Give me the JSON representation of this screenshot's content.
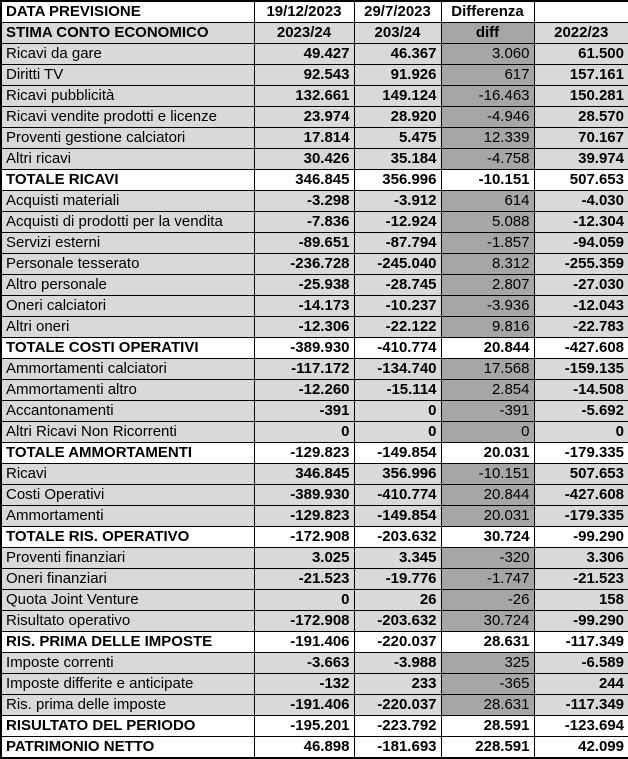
{
  "colors": {
    "row_background": "#d9d9d9",
    "diff_column_background": "#a6a6a6",
    "total_row_background": "#ffffff",
    "border": "#000000",
    "text": "#000000"
  },
  "chart_data": {
    "type": "table",
    "title": "STIMA CONTO ECONOMICO",
    "header_rows": [
      [
        "DATA PREVISIONE",
        "19/12/2023",
        "29/7/2023",
        "Differenza",
        ""
      ],
      [
        "STIMA CONTO ECONOMICO",
        "2023/24",
        "203/24",
        "diff",
        "2022/23"
      ]
    ],
    "rows": [
      {
        "label": "Ricavi da gare",
        "v1": "49.427",
        "v2": "46.367",
        "diff": "3.060",
        "v3": "61.500",
        "kind": "data"
      },
      {
        "label": "Diritti TV",
        "v1": "92.543",
        "v2": "91.926",
        "diff": "617",
        "v3": "157.161",
        "kind": "data"
      },
      {
        "label": "Ricavi pubblicità",
        "v1": "132.661",
        "v2": "149.124",
        "diff": "-16.463",
        "v3": "150.281",
        "kind": "data"
      },
      {
        "label": "Ricavi vendite prodotti e licenze",
        "v1": "23.974",
        "v2": "28.920",
        "diff": "-4.946",
        "v3": "28.570",
        "kind": "data"
      },
      {
        "label": "Proventi gestione calciatori",
        "v1": "17.814",
        "v2": "5.475",
        "diff": "12.339",
        "v3": "70.167",
        "kind": "data"
      },
      {
        "label": "Altri ricavi",
        "v1": "30.426",
        "v2": "35.184",
        "diff": "-4.758",
        "v3": "39.974",
        "kind": "data"
      },
      {
        "label": "TOTALE RICAVI",
        "v1": "346.845",
        "v2": "356.996",
        "diff": "-10.151",
        "v3": "507.653",
        "kind": "total"
      },
      {
        "label": "Acquisti materiali",
        "v1": "-3.298",
        "v2": "-3.912",
        "diff": "614",
        "v3": "-4.030",
        "kind": "data"
      },
      {
        "label": "Acquisti di prodotti per la vendita",
        "v1": "-7.836",
        "v2": "-12.924",
        "diff": "5.088",
        "v3": "-12.304",
        "kind": "data"
      },
      {
        "label": "Servizi esterni",
        "v1": "-89.651",
        "v2": "-87.794",
        "diff": "-1.857",
        "v3": "-94.059",
        "kind": "data"
      },
      {
        "label": "Personale tesserato",
        "v1": "-236.728",
        "v2": "-245.040",
        "diff": "8.312",
        "v3": "-255.359",
        "kind": "data"
      },
      {
        "label": "Altro personale",
        "v1": "-25.938",
        "v2": "-28.745",
        "diff": "2.807",
        "v3": "-27.030",
        "kind": "data"
      },
      {
        "label": "Oneri calciatori",
        "v1": "-14.173",
        "v2": "-10.237",
        "diff": "-3.936",
        "v3": "-12.043",
        "kind": "data"
      },
      {
        "label": "Altri oneri",
        "v1": "-12.306",
        "v2": "-22.122",
        "diff": "9.816",
        "v3": "-22.783",
        "kind": "data"
      },
      {
        "label": "TOTALE COSTI OPERATIVI",
        "v1": "-389.930",
        "v2": "-410.774",
        "diff": "20.844",
        "v3": "-427.608",
        "kind": "total"
      },
      {
        "label": "Ammortamenti calciatori",
        "v1": "-117.172",
        "v2": "-134.740",
        "diff": "17.568",
        "v3": "-159.135",
        "kind": "data"
      },
      {
        "label": "Ammortamenti altro",
        "v1": "-12.260",
        "v2": "-15.114",
        "diff": "2.854",
        "v3": "-14.508",
        "kind": "data"
      },
      {
        "label": "Accantonamenti",
        "v1": "-391",
        "v2": "0",
        "diff": "-391",
        "v3": "-5.692",
        "kind": "data"
      },
      {
        "label": "Altri Ricavi Non Ricorrenti",
        "v1": "0",
        "v2": "0",
        "diff": "0",
        "v3": "0",
        "kind": "data"
      },
      {
        "label": "TOTALE AMMORTAMENTI",
        "v1": "-129.823",
        "v2": "-149.854",
        "diff": "20.031",
        "v3": "-179.335",
        "kind": "total"
      },
      {
        "label": "Ricavi",
        "v1": "346.845",
        "v2": "356.996",
        "diff": "-10.151",
        "v3": "507.653",
        "kind": "data"
      },
      {
        "label": "Costi Operativi",
        "v1": "-389.930",
        "v2": "-410.774",
        "diff": "20.844",
        "v3": "-427.608",
        "kind": "data"
      },
      {
        "label": "Ammortamenti",
        "v1": "-129.823",
        "v2": "-149.854",
        "diff": "20.031",
        "v3": "-179.335",
        "kind": "data"
      },
      {
        "label": "TOTALE RIS. OPERATIVO",
        "v1": "-172.908",
        "v2": "-203.632",
        "diff": "30.724",
        "v3": "-99.290",
        "kind": "total"
      },
      {
        "label": "Proventi finanziari",
        "v1": "3.025",
        "v2": "3.345",
        "diff": "-320",
        "v3": "3.306",
        "kind": "data"
      },
      {
        "label": "Oneri finanziari",
        "v1": "-21.523",
        "v2": "-19.776",
        "diff": "-1.747",
        "v3": "-21.523",
        "kind": "data"
      },
      {
        "label": "Quota Joint Venture",
        "v1": "0",
        "v2": "26",
        "diff": "-26",
        "v3": "158",
        "kind": "data"
      },
      {
        "label": "Risultato operativo",
        "v1": "-172.908",
        "v2": "-203.632",
        "diff": "30.724",
        "v3": "-99.290",
        "kind": "data"
      },
      {
        "label": "RIS. PRIMA DELLE IMPOSTE",
        "v1": "-191.406",
        "v2": "-220.037",
        "diff": "28.631",
        "v3": "-117.349",
        "kind": "total"
      },
      {
        "label": "Imposte correnti",
        "v1": "-3.663",
        "v2": "-3.988",
        "diff": "325",
        "v3": "-6.589",
        "kind": "data"
      },
      {
        "label": "Imposte differite e anticipate",
        "v1": "-132",
        "v2": "233",
        "diff": "-365",
        "v3": "244",
        "kind": "data"
      },
      {
        "label": "Ris. prima delle imposte",
        "v1": "-191.406",
        "v2": "-220.037",
        "diff": "28.631",
        "v3": "-117.349",
        "kind": "data"
      },
      {
        "label": "RISULTATO DEL PERIODO",
        "v1": "-195.201",
        "v2": "-223.792",
        "diff": "28.591",
        "v3": "-123.694",
        "kind": "total"
      },
      {
        "label": "PATRIMONIO NETTO",
        "v1": "46.898",
        "v2": "-181.693",
        "diff": "228.591",
        "v3": "42.099",
        "kind": "total"
      }
    ]
  }
}
